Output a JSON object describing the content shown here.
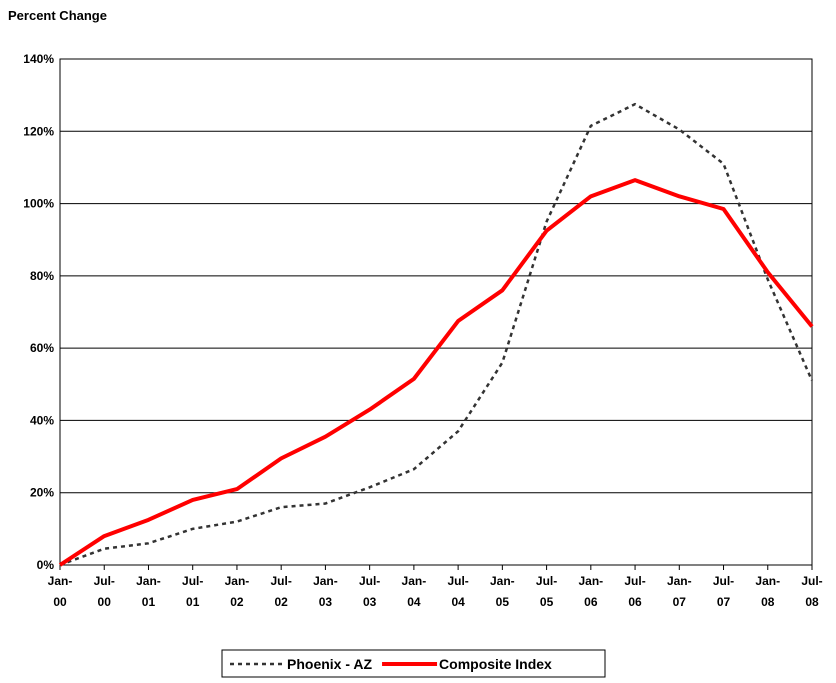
{
  "chart_data": {
    "type": "line",
    "title": "Percent Change",
    "categories": [
      "Jan-00",
      "Jul-00",
      "Jan-01",
      "Jul-01",
      "Jan-02",
      "Jul-02",
      "Jan-03",
      "Jul-03",
      "Jan-04",
      "Jul-04",
      "Jan-05",
      "Jul-05",
      "Jan-06",
      "Jul-06",
      "Jan-07",
      "Jul-07",
      "Jan-08",
      "Jul-08"
    ],
    "series": [
      {
        "name": "Phoenix - AZ",
        "color": "#333333",
        "dashed": true,
        "values": [
          0,
          4.5,
          6,
          10,
          12,
          16,
          17,
          21.5,
          26.5,
          37,
          56,
          95,
          121.5,
          127.5,
          120.5,
          111,
          79,
          51
        ]
      },
      {
        "name": "Composite Index",
        "color": "#ff0000",
        "dashed": false,
        "values": [
          0,
          8,
          12.5,
          18,
          21,
          29.5,
          35.5,
          43,
          51.5,
          67.5,
          76,
          92.5,
          102,
          106.5,
          102,
          98.5,
          81,
          66
        ]
      }
    ],
    "ylim": [
      0,
      140
    ],
    "yticks": [
      {
        "value": 0,
        "label": "0%"
      },
      {
        "value": 20,
        "label": "20%"
      },
      {
        "value": 40,
        "label": "40%"
      },
      {
        "value": 60,
        "label": "60%"
      },
      {
        "value": 80,
        "label": "80%"
      },
      {
        "value": 100,
        "label": "100%"
      },
      {
        "value": 120,
        "label": "120%"
      },
      {
        "value": 140,
        "label": "140%"
      }
    ],
    "grid": true,
    "legend": "bottom"
  }
}
